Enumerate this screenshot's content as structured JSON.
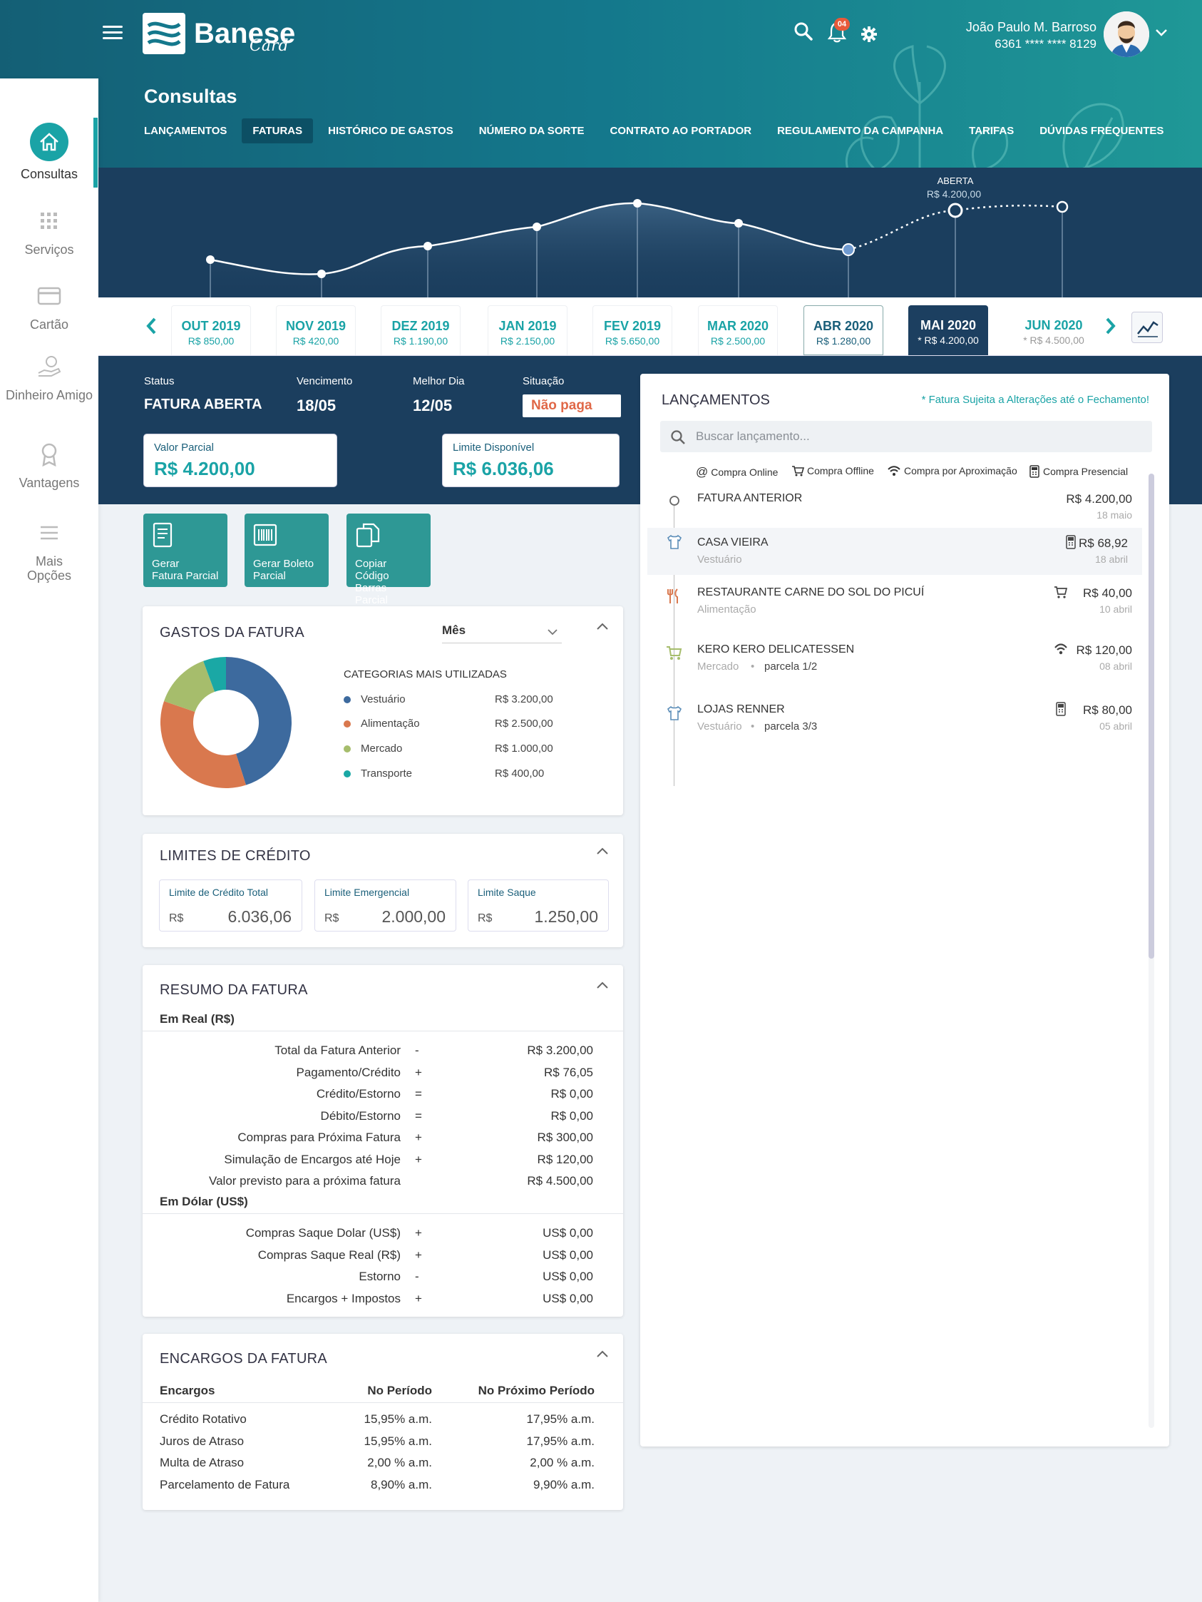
{
  "header": {
    "logo_word": "Banese",
    "logo_sub": "Card",
    "notifications_count": "04",
    "user_name": "João Paulo M. Barroso",
    "card_number": "6361 **** **** 8129",
    "page_title": "Consultas",
    "tabs": [
      {
        "label": "LANÇAMENTOS"
      },
      {
        "label": "FATURAS",
        "active": true
      },
      {
        "label": "HISTÓRICO DE GASTOS"
      },
      {
        "label": "NÚMERO DA SORTE"
      },
      {
        "label": "CONTRATO AO PORTADOR"
      },
      {
        "label": "REGULAMENTO DA CAMPANHA"
      },
      {
        "label": "TARIFAS"
      },
      {
        "label": "DÚVIDAS FREQUENTES"
      }
    ]
  },
  "sidebar": {
    "items": [
      {
        "label": "Consultas",
        "icon": "home-icon",
        "active": true
      },
      {
        "label": "Serviços",
        "icon": "grid-icon"
      },
      {
        "label": "Cartão",
        "icon": "card-icon"
      },
      {
        "label": "Dinheiro Amigo",
        "icon": "money-hand-icon"
      },
      {
        "label": "Vantagens",
        "icon": "award-icon"
      },
      {
        "label": "Mais Opções",
        "icon": "menu-lines-icon"
      }
    ]
  },
  "trend": {
    "open_label": "ABERTA",
    "open_value": "R$ 4.200,00"
  },
  "months": [
    {
      "label": "OUT 2019",
      "value": "R$ 850,00"
    },
    {
      "label": "NOV 2019",
      "value": "R$ 420,00"
    },
    {
      "label": "DEZ 2019",
      "value": "R$ 1.190,00"
    },
    {
      "label": "JAN 2019",
      "value": "R$ 2.150,00"
    },
    {
      "label": "FEV 2019",
      "value": "R$ 5.650,00"
    },
    {
      "label": "MAR 2020",
      "value": "R$ 2.500,00"
    },
    {
      "label": "ABR 2020",
      "value": "R$ 1.280,00",
      "selected": true
    },
    {
      "label": "MAI 2020",
      "value": "* R$ 4.200,00",
      "current": true
    },
    {
      "label": "JUN 2020",
      "value": "* R$ 4.500,00",
      "future": true
    }
  ],
  "fatura": {
    "status_label": "Status",
    "status": "FATURA ABERTA",
    "vencimento_label": "Vencimento",
    "vencimento": "18/05",
    "melhor_dia_label": "Melhor Dia",
    "melhor_dia": "12/05",
    "situacao_label": "Situação",
    "situacao": "Não paga",
    "valor_parcial_label": "Valor Parcial",
    "valor_parcial": "R$ 4.200,00",
    "limite_disponivel_label": "Limite Disponível",
    "limite_disponivel": "R$ 6.036,06"
  },
  "actions": [
    {
      "line1": "Gerar",
      "line2": "Fatura Parcial",
      "icon": "invoice-icon"
    },
    {
      "line1": "Gerar Boleto",
      "line2": "Parcial",
      "icon": "barcode-icon"
    },
    {
      "line1": "Copiar Código",
      "line2": "Barras Parcial",
      "icon": "copy-icon"
    }
  ],
  "gastos": {
    "title": "GASTOS DA FATURA",
    "period": "Mês",
    "categories_title": "CATEGORIAS MAIS UTILIZADAS",
    "categories": [
      {
        "name": "Vestuário",
        "value": "R$ 3.200,00",
        "color": "#3d6a9e"
      },
      {
        "name": "Alimentação",
        "value": "R$ 2.500,00",
        "color": "#d9784e"
      },
      {
        "name": "Mercado",
        "value": "R$ 1.000,00",
        "color": "#a6bd6c"
      },
      {
        "name": "Transporte",
        "value": "R$ 400,00",
        "color": "#1aa8a5"
      }
    ]
  },
  "limites": {
    "title": "LIMITES DE CRÉDITO",
    "currency": "R$",
    "items": [
      {
        "label": "Limite de Crédito Total",
        "value": "6.036,06"
      },
      {
        "label": "Limite Emergencial",
        "value": "2.000,00"
      },
      {
        "label": "Limite Saque",
        "value": "1.250,00"
      }
    ]
  },
  "resumo": {
    "title": "RESUMO DA FATURA",
    "real_title": "Em Real (R$)",
    "real_rows": [
      {
        "label": "Total da Fatura Anterior",
        "op": "-",
        "value": "R$ 3.200,00"
      },
      {
        "label": "Pagamento/Crédito",
        "op": "+",
        "value": "R$ 76,05"
      },
      {
        "label": "Crédito/Estorno",
        "op": "=",
        "value": "R$ 0,00"
      },
      {
        "label": "Débito/Estorno",
        "op": "=",
        "value": "R$ 0,00"
      },
      {
        "label": "Compras para Próxima Fatura",
        "op": "+",
        "value": "R$ 300,00"
      },
      {
        "label": "Simulação de Encargos até Hoje",
        "op": "+",
        "value": "R$ 120,00"
      },
      {
        "label": "Valor previsto para a próxima fatura",
        "op": "",
        "value": "R$ 4.500,00"
      }
    ],
    "dolar_title": "Em Dólar (US$)",
    "dolar_rows": [
      {
        "label": "Compras Saque Dolar (US$)",
        "op": "+",
        "value": "US$ 0,00"
      },
      {
        "label": "Compras Saque Real (R$)",
        "op": "+",
        "value": "US$ 0,00"
      },
      {
        "label": "Estorno",
        "op": "-",
        "value": "US$ 0,00"
      },
      {
        "label": "Encargos + Impostos",
        "op": "+",
        "value": "US$ 0,00"
      }
    ]
  },
  "encargos": {
    "title": "ENCARGOS DA FATURA",
    "headers": [
      "Encargos",
      "No Período",
      "No Próximo Período"
    ],
    "rows": [
      [
        "Crédito Rotativo",
        "15,95% a.m.",
        "17,95% a.m."
      ],
      [
        "Juros de Atraso",
        "15,95% a.m.",
        "17,95% a.m."
      ],
      [
        "Multa de Atraso",
        "2,00 % a.m.",
        "2,00 % a.m."
      ],
      [
        "Parcelamento de Fatura",
        "8,90% a.m.",
        "9,90% a.m."
      ]
    ]
  },
  "lancamentos": {
    "title": "LANÇAMENTOS",
    "notice": "* Fatura Sujeita a Alterações até o Fechamento!",
    "search_placeholder": "Buscar lançamento...",
    "legend": [
      "Compra Online",
      "Compra Offline",
      "Compra por Aproximação",
      "Compra Presencial"
    ],
    "items": [
      {
        "name": "FATURA ANTERIOR",
        "category": "",
        "parcela": "",
        "value": "R$ 4.200,00",
        "date": "18 maio",
        "icon": "circle-icon",
        "type_icon": ""
      },
      {
        "name": "CASA VIEIRA",
        "category": "Vestuário",
        "parcela": "",
        "value": "R$ 68,92",
        "date": "18 abril",
        "icon": "shirt-icon",
        "type_icon": "pos-terminal-icon",
        "highlight": true
      },
      {
        "name": "RESTAURANTE CARNE DO SOL DO PICUÍ",
        "category": "Alimentação",
        "parcela": "",
        "value": "R$ 40,00",
        "date": "10 abril",
        "icon": "cutlery-icon",
        "type_icon": "cart-icon"
      },
      {
        "name": "KERO KERO DELICATESSEN",
        "category": "Mercado",
        "parcela": "parcela 1/2",
        "value": "R$ 120,00",
        "date": "08 abril",
        "icon": "grocery-cart-icon",
        "type_icon": "contactless-icon"
      },
      {
        "name": "LOJAS RENNER",
        "category": "Vestuário",
        "parcela": "parcela 3/3",
        "value": "R$ 80,00",
        "date": "05 abril",
        "icon": "shirt-icon",
        "type_icon": "pos-terminal-icon"
      }
    ]
  }
}
